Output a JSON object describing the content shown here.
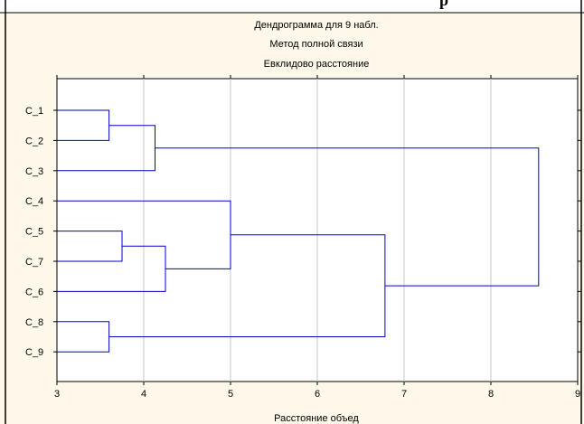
{
  "window": {
    "top_banner_text": "p",
    "background_color": "#fdf8ea",
    "plot_background_color": "#ffffff",
    "grid_color": "#c8c8c8",
    "link_color": "#0000c8"
  },
  "chart_data": {
    "type": "dendrogram",
    "title": [
      "Дендрограмма для 9 набл.",
      "Метод полной связи",
      "Евклидово расстояние"
    ],
    "xlabel": "Расстояние объед",
    "xlim": [
      3,
      9
    ],
    "xticks": [
      3,
      4,
      5,
      6,
      7,
      8,
      9
    ],
    "grid": true,
    "orientation": "horizontal",
    "leaves": [
      "C_1",
      "C_2",
      "C_3",
      "C_4",
      "C_5",
      "C_7",
      "C_6",
      "C_8",
      "C_9"
    ],
    "merges": [
      {
        "left": "C_1",
        "right": "C_2",
        "height": 3.6
      },
      {
        "left": "C_5",
        "right": "C_7",
        "height": 3.75
      },
      {
        "left": "C_8",
        "right": "C_9",
        "height": 3.6
      },
      {
        "left": "C_1+C_2",
        "right": "C_3",
        "height": 4.13
      },
      {
        "left": "C_5+C_7",
        "right": "C_6",
        "height": 4.25
      },
      {
        "left": "C_4",
        "right": "C_5+C_7+C_6",
        "height": 5.0
      },
      {
        "left": "C_4+C_5+C_7+C_6",
        "right": "C_8+C_9",
        "height": 6.78
      },
      {
        "left": "C_1+C_2+C_3",
        "right": "C_4+C_5+C_7+C_6+C_8+C_9",
        "height": 8.55
      }
    ]
  }
}
